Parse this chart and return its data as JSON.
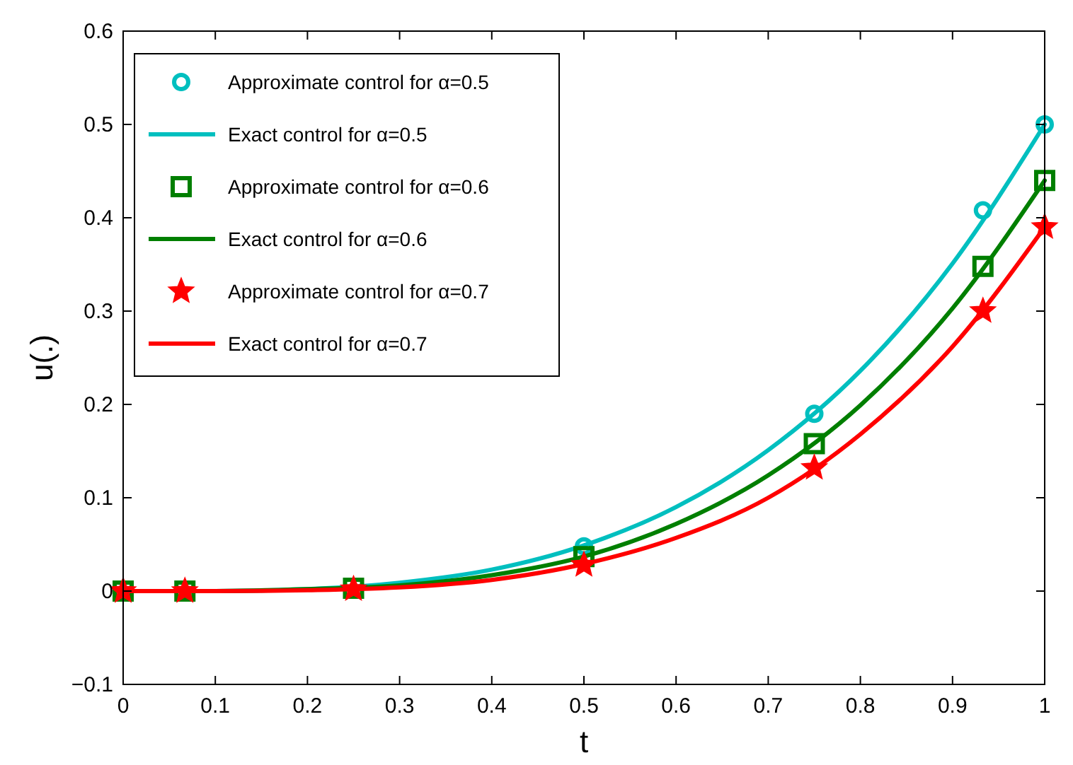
{
  "chart_data": {
    "type": "line",
    "xlabel": "t",
    "ylabel": "u(.)",
    "xlim": [
      0,
      1
    ],
    "ylim": [
      -0.1,
      0.6
    ],
    "xticks": [
      0,
      0.1,
      0.2,
      0.3,
      0.4,
      0.5,
      0.6,
      0.7,
      0.8,
      0.9,
      1
    ],
    "yticks": [
      -0.1,
      0,
      0.1,
      0.2,
      0.3,
      0.4,
      0.5,
      0.6
    ],
    "grid": false,
    "legend": "top left",
    "series": [
      {
        "name": "Approximate control for α=0.5",
        "type": "scatter",
        "marker": "circle",
        "color": "#00bfbf",
        "x": [
          0.5,
          0.75,
          0.933,
          1
        ],
        "values": [
          0.048,
          0.19,
          0.408,
          0.5
        ]
      },
      {
        "name": "Exact control for α=0.5",
        "marker": "none",
        "color": "#00bfbf",
        "x": [
          0,
          0.1,
          0.2,
          0.3,
          0.4,
          0.5,
          0.6,
          0.7,
          0.8,
          0.9,
          1
        ],
        "values": [
          0,
          0,
          0.002,
          0.009,
          0.023,
          0.049,
          0.09,
          0.151,
          0.236,
          0.351,
          0.5
        ]
      },
      {
        "name": "Approximate control for α=0.6",
        "type": "scatter",
        "marker": "square",
        "color": "#007f00",
        "x": [
          0,
          0.067,
          0.25,
          0.5,
          0.75,
          0.933,
          1
        ],
        "values": [
          0,
          0,
          0.003,
          0.037,
          0.158,
          0.348,
          0.44
        ]
      },
      {
        "name": "Exact control for α=0.6",
        "marker": "none",
        "color": "#007f00",
        "x": [
          0,
          0.1,
          0.2,
          0.3,
          0.4,
          0.5,
          0.6,
          0.7,
          0.8,
          0.9,
          1
        ],
        "values": [
          0,
          0,
          0.002,
          0.006,
          0.017,
          0.037,
          0.072,
          0.124,
          0.199,
          0.303,
          0.44
        ]
      },
      {
        "name": "Approximate control for α=0.7",
        "type": "scatter",
        "marker": "star",
        "color": "#ff0000",
        "x": [
          0,
          0.067,
          0.25,
          0.5,
          0.75,
          0.933,
          1
        ],
        "values": [
          0,
          0,
          0.002,
          0.028,
          0.132,
          0.3,
          0.39
        ]
      },
      {
        "name": "Exact control for α=0.7",
        "marker": "none",
        "color": "#ff0000",
        "x": [
          0,
          0.1,
          0.2,
          0.3,
          0.4,
          0.5,
          0.6,
          0.7,
          0.8,
          0.9,
          1
        ],
        "values": [
          0,
          0,
          0.001,
          0.004,
          0.012,
          0.029,
          0.057,
          0.1,
          0.168,
          0.262,
          0.39
        ]
      }
    ]
  }
}
